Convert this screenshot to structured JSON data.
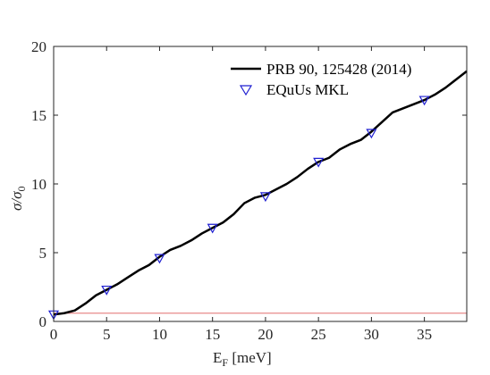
{
  "chart_data": {
    "type": "line",
    "title": "",
    "xlabel": {
      "main": "E",
      "sub": "F",
      "rest": " [meV]"
    },
    "ylabel": {
      "a": "σ/σ",
      "sub": "0"
    },
    "xlim": [
      0,
      39
    ],
    "ylim": [
      0,
      20
    ],
    "xticks": [
      0,
      5,
      10,
      15,
      20,
      25,
      30,
      35
    ],
    "yticks": [
      0,
      5,
      10,
      15,
      20
    ],
    "grid": false,
    "legend_position": "top-right",
    "colors": {
      "line": "#000000",
      "markers": "#1f1fd1",
      "reference": "#e88a8a",
      "axes": "#262626"
    },
    "series": [
      {
        "name": "PRB 90, 125428 (2014)",
        "style": "line",
        "x": [
          0,
          1,
          2,
          3,
          4,
          5,
          6,
          7,
          8,
          9,
          10,
          11,
          12,
          13,
          14,
          15,
          16,
          17,
          18,
          19,
          20,
          21,
          22,
          23,
          24,
          25,
          26,
          27,
          28,
          29,
          30,
          31,
          32,
          33,
          34,
          35,
          36,
          37,
          38,
          39
        ],
        "y": [
          0.5,
          0.6,
          0.8,
          1.3,
          1.9,
          2.3,
          2.7,
          3.2,
          3.7,
          4.1,
          4.7,
          5.2,
          5.5,
          5.9,
          6.4,
          6.8,
          7.2,
          7.8,
          8.6,
          9.0,
          9.2,
          9.6,
          10.0,
          10.5,
          11.1,
          11.6,
          11.9,
          12.5,
          12.9,
          13.2,
          13.8,
          14.5,
          15.2,
          15.5,
          15.8,
          16.1,
          16.5,
          17.0,
          17.6,
          18.2
        ]
      },
      {
        "name": "EQuUs MKL",
        "style": "marker-triangle-down",
        "x": [
          0,
          5,
          10,
          15,
          20,
          25,
          30,
          35
        ],
        "y": [
          0.5,
          2.3,
          4.6,
          6.8,
          9.1,
          11.6,
          13.7,
          16.1
        ]
      },
      {
        "name": "",
        "style": "reference-line",
        "x": [
          0,
          39
        ],
        "y": [
          0.6,
          0.6
        ]
      }
    ]
  }
}
